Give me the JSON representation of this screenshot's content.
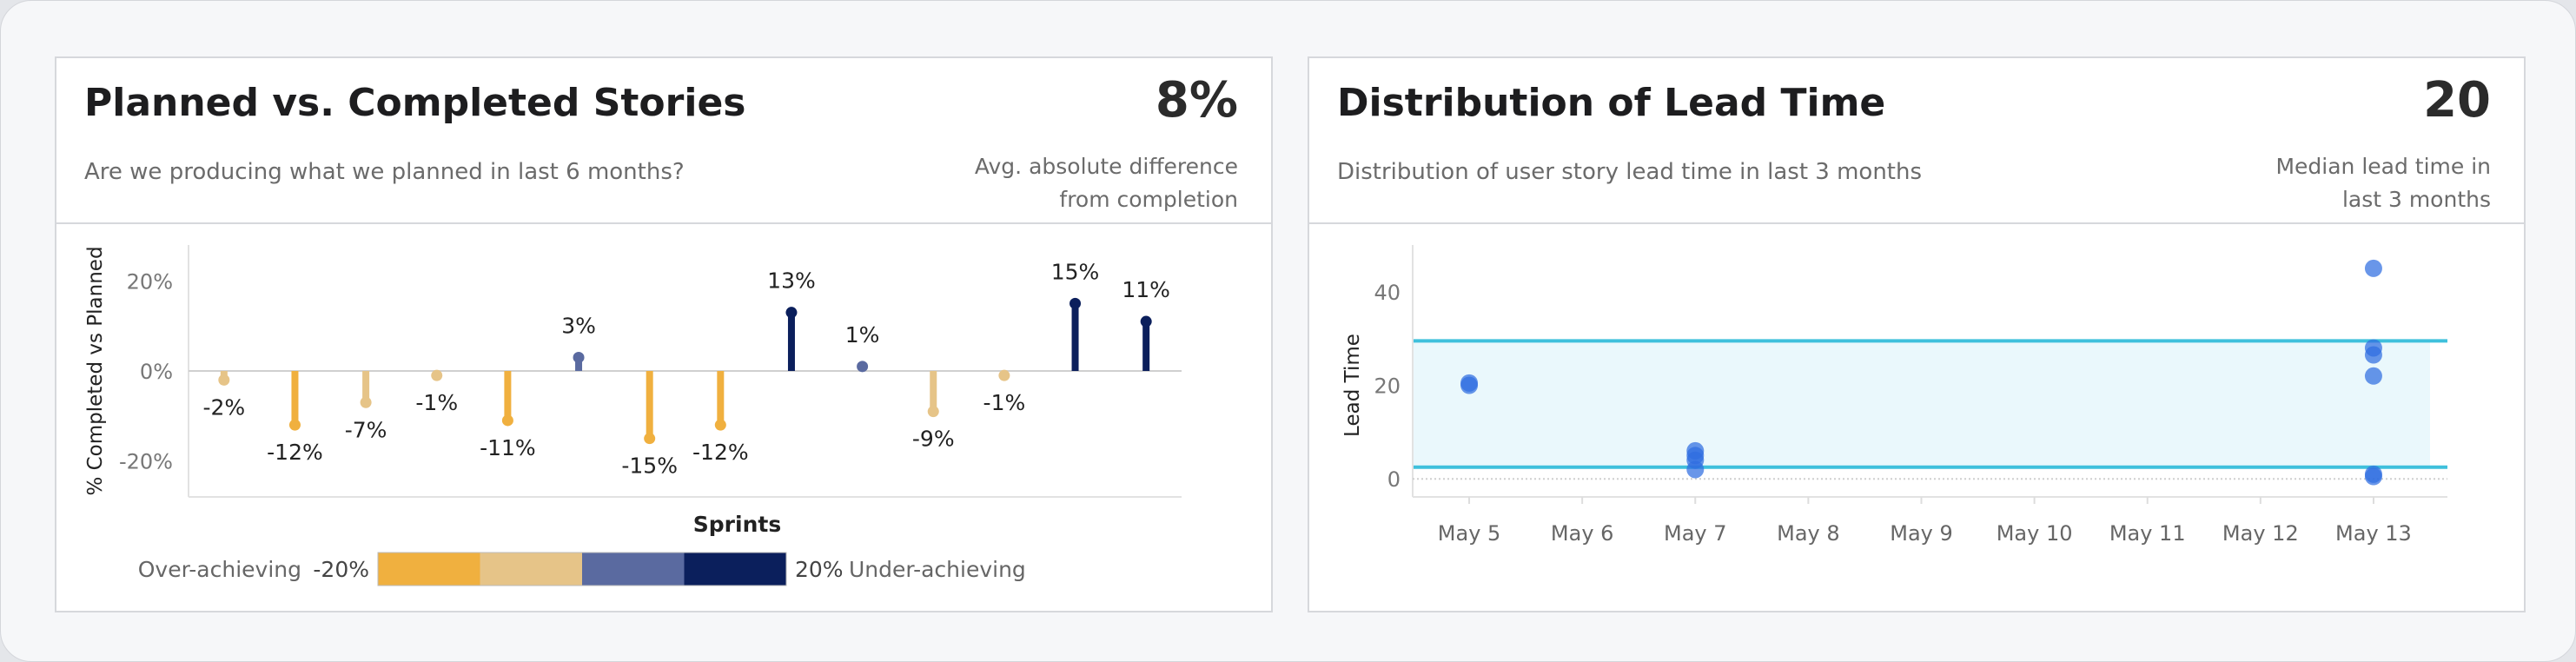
{
  "left_card": {
    "title": "Planned vs. Completed Stories",
    "subtitle": "Are we producing what we planned in last 6 months?",
    "kpi_value": "8%",
    "kpi_label_line1": "Avg. absolute difference",
    "kpi_label_line2": "from completion",
    "legend": {
      "left_text": "Over-achieving",
      "min_label": "-20%",
      "max_label": "20%",
      "right_text": "Under-achieving",
      "colors": [
        "#f0b03f",
        "#e6c488",
        "#5a6aa0",
        "#0b1f5c"
      ]
    }
  },
  "right_card": {
    "title": "Distribution of Lead Time",
    "subtitle": "Distribution of user story lead time in last 3 months",
    "kpi_value": "20",
    "kpi_label_line1": "Median lead time in",
    "kpi_label_line2": "last 3 months"
  },
  "chart_data": [
    {
      "type": "bar",
      "xlabel": "Sprints",
      "ylabel": "% Completed vs Planned",
      "ylim": [
        -28,
        28
      ],
      "yticks": [
        -20,
        0,
        20
      ],
      "ytick_labels": [
        "-20%",
        "0%",
        "20%"
      ],
      "values": [
        -2,
        -12,
        -7,
        -1,
        -11,
        3,
        -15,
        -12,
        13,
        1,
        -9,
        -1,
        15,
        11
      ],
      "labels": [
        "-2%",
        "-12%",
        "-7%",
        "-1%",
        "-11%",
        "3%",
        "-15%",
        "-12%",
        "13%",
        "1%",
        "-9%",
        "-1%",
        "15%",
        "11%"
      ],
      "colors": {
        "strong_negative": "#f0b03f",
        "weak_negative": "#e6c488",
        "weak_positive": "#5a6aa0",
        "strong_positive": "#0b1f5c"
      }
    },
    {
      "type": "scatter",
      "ylabel": "Lead Time",
      "ylim": [
        -2,
        50
      ],
      "yticks": [
        0,
        20,
        40
      ],
      "x_categories": [
        "May 5",
        "May 6",
        "May 7",
        "May 8",
        "May 9",
        "May 10",
        "May 11",
        "May 12",
        "May 13"
      ],
      "points": [
        {
          "x": "May 5",
          "y": 20
        },
        {
          "x": "May 5",
          "y": 20.5
        },
        {
          "x": "May 7",
          "y": 2
        },
        {
          "x": "May 7",
          "y": 4
        },
        {
          "x": "May 7",
          "y": 5
        },
        {
          "x": "May 7",
          "y": 6
        },
        {
          "x": "May 13",
          "y": 45
        },
        {
          "x": "May 13",
          "y": 28
        },
        {
          "x": "May 13",
          "y": 26.5
        },
        {
          "x": "May 13",
          "y": 22
        },
        {
          "x": "May 13",
          "y": 1
        },
        {
          "x": "May 13",
          "y": 0.5
        }
      ],
      "band": {
        "lower": 2.5,
        "upper": 29.5
      },
      "colors": {
        "point": "#2f6de0",
        "band_fill": "#eaf8fc",
        "band_line": "#3fc0dc"
      }
    }
  ]
}
